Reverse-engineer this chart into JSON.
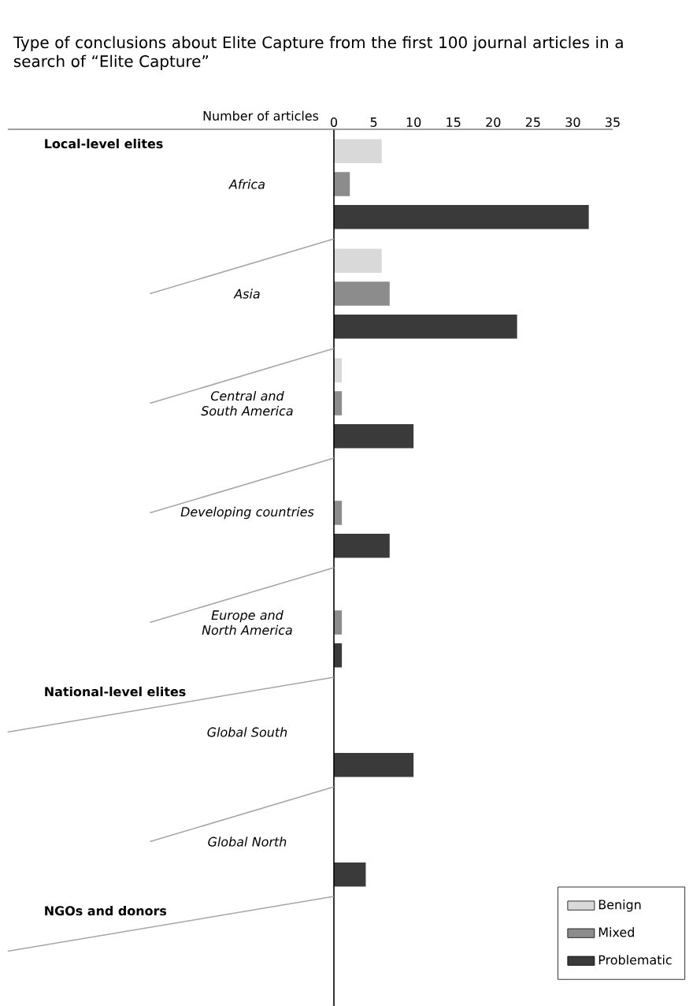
{
  "chart_data": {
    "type": "bar",
    "orientation": "horizontal",
    "title": "Type of conclusions about Elite Capture from the first 100 journal articles in a search of “Elite Capture”",
    "xlabel": "Number of articles",
    "categories": [
      "Africa",
      "Asia",
      "Central and South America",
      "Developing countries",
      "Europe and North America",
      "Global South",
      "Global North",
      null
    ],
    "series": [
      {
        "name": "Benign",
        "color": "#d9d9d9",
        "values": [
          6,
          6,
          1,
          0,
          0,
          0,
          0,
          0
        ]
      },
      {
        "name": "Mixed",
        "color": "#8c8c8c",
        "values": [
          2,
          7,
          1,
          1,
          1,
          0,
          0,
          0
        ]
      },
      {
        "name": "Problematic",
        "color": "#3a3a3a",
        "values": [
          32,
          23,
          10,
          7,
          1,
          10,
          4,
          0
        ]
      }
    ],
    "annotations": [
      "Local-level elites",
      "National-level elites",
      "NGOs and donors"
    ],
    "xlim": [
      0,
      35
    ],
    "xticks": [
      0,
      5,
      10,
      15,
      20,
      25,
      30,
      35
    ],
    "legend": "bottom right",
    "grid": false
  }
}
